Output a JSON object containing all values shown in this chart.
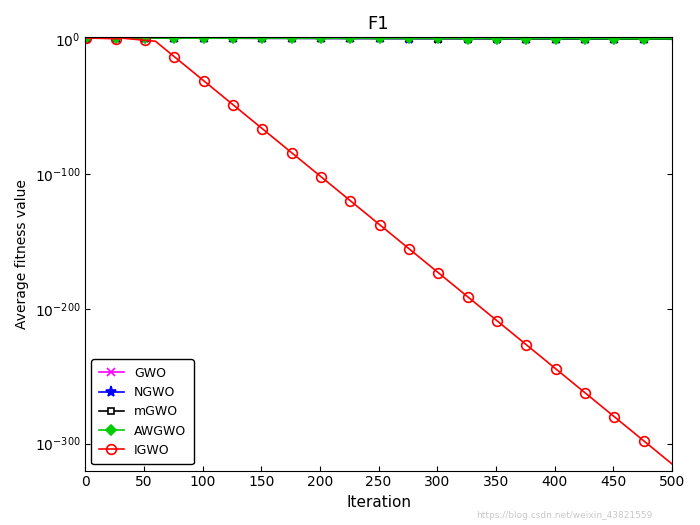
{
  "title": "F1",
  "xlabel": "Iteration",
  "ylabel": "Average fitness value",
  "xlim": [
    0,
    500
  ],
  "max_iter": 500,
  "series": {
    "GWO": {
      "color": "#FF00FF",
      "marker": "x",
      "marker_size": 6,
      "linewidth": 1.2
    },
    "NGWO": {
      "color": "#0000FF",
      "marker": "*",
      "marker_size": 8,
      "linewidth": 1.2
    },
    "mGWO": {
      "color": "#000000",
      "marker": "s",
      "marker_size": 5,
      "linewidth": 1.2
    },
    "AWGWO": {
      "color": "#00CC00",
      "marker": "D",
      "marker_size": 5,
      "linewidth": 1.2
    },
    "IGWO": {
      "color": "#FF0000",
      "marker": "o",
      "marker_size": 7,
      "linewidth": 1.2
    }
  },
  "legend_order": [
    "GWO",
    "NGWO",
    "mGWO",
    "AWGWO",
    "IGWO"
  ],
  "watermark": "https://blog.csdn.net/weixin_43821559",
  "background_color": "#FFFFFF",
  "ytick_exponents": [
    0,
    -100,
    -200,
    -300
  ],
  "xticks": [
    0,
    50,
    100,
    150,
    200,
    250,
    300,
    350,
    400,
    450,
    500
  ],
  "marker_every": 25
}
